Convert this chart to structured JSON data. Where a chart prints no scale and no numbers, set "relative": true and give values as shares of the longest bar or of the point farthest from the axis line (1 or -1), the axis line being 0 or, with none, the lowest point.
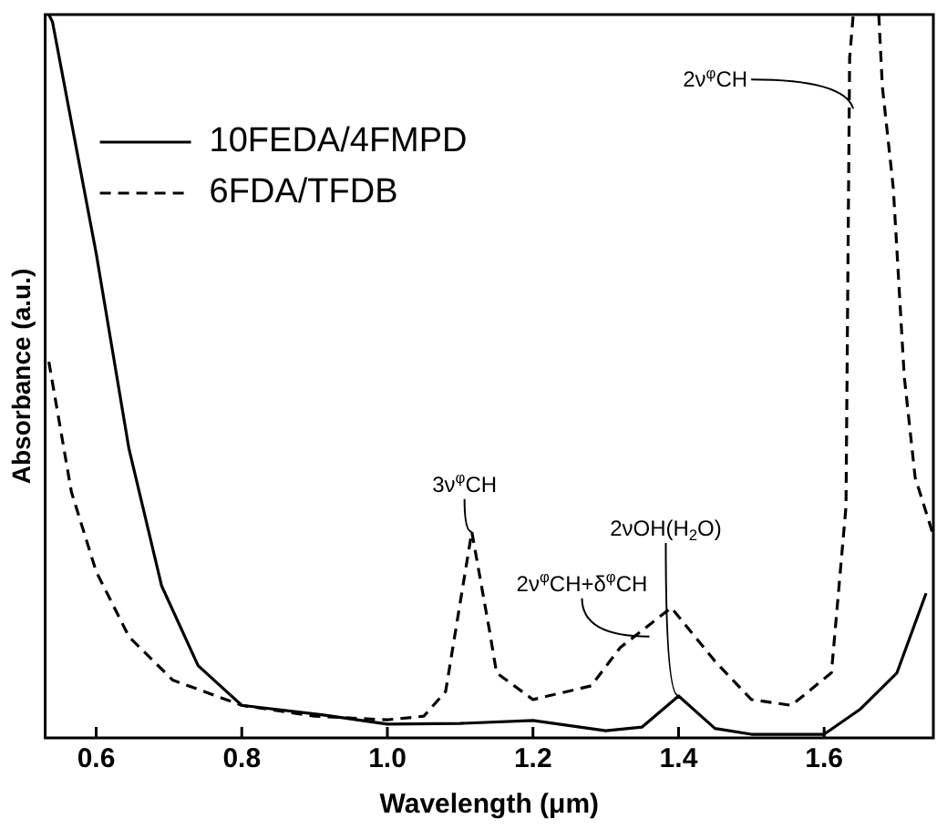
{
  "chart_data": {
    "type": "line",
    "relative": true,
    "xlabel": "Wavelength (μm)",
    "ylabel": "Absorbance (a.u.)",
    "xlim": [
      0.53,
      1.75
    ],
    "xticks": [
      0.6,
      0.8,
      {
        "value": 1,
        "label": "1.0"
      },
      1.2,
      1.4,
      1.6
    ],
    "grid": false,
    "legend": "top left",
    "marker": "none",
    "series": [
      {
        "name": "10FEDA/4FMPD",
        "color": "#000000",
        "line_style": "solid",
        "x": [
          0.535,
          0.54,
          0.6,
          0.645,
          0.69,
          0.74,
          0.8,
          0.91,
          1.0,
          1.1,
          1.2,
          1.3,
          1.35,
          1.4,
          1.45,
          1.5,
          1.6,
          1.65,
          1.7,
          1.74
        ],
        "values": [
          1,
          0.99,
          0.67,
          0.4,
          0.21,
          0.1,
          0.045,
          0.032,
          0.019,
          0.02,
          0.024,
          0.01,
          0.015,
          0.058,
          0.013,
          0.005,
          0.005,
          0.04,
          0.09,
          0.2
        ]
      },
      {
        "name": "6FDA/TFDB",
        "color": "#000000",
        "line_style": "dashed",
        "x": [
          0.535,
          0.566,
          0.6,
          0.645,
          0.705,
          0.8,
          0.9,
          1.0,
          1.05,
          1.08,
          1.116,
          1.14,
          1.15,
          1.2,
          1.28,
          1.32,
          1.39,
          1.45,
          1.5,
          1.555,
          1.61,
          1.63,
          1.635,
          1.64,
          1.655,
          1.675,
          1.68,
          1.695,
          1.71,
          1.725,
          1.75
        ],
        "values": [
          0.52,
          0.34,
          0.23,
          0.14,
          0.08,
          0.045,
          0.03,
          0.025,
          0.03,
          0.064,
          0.285,
          0.15,
          0.09,
          0.053,
          0.072,
          0.125,
          0.18,
          0.106,
          0.053,
          0.045,
          0.09,
          0.32,
          0.94,
          1,
          null,
          1,
          0.9,
          0.76,
          0.5,
          0.36,
          0.28
        ]
      }
    ],
    "annotations": [
      {
        "text": "2ν$^{φ}$CH",
        "x": 1.64,
        "y": 0.87
      },
      {
        "text": "3ν$^{φ}$CH",
        "x": 1.116,
        "y": 0.285
      },
      {
        "text": "2ν$^{φ}$CH+δ$^{φ}$CH",
        "x": 1.36,
        "y": 0.14
      },
      {
        "text": "2νOH(H$_{2}$O)",
        "x": 1.4,
        "y": 0.058
      }
    ]
  }
}
